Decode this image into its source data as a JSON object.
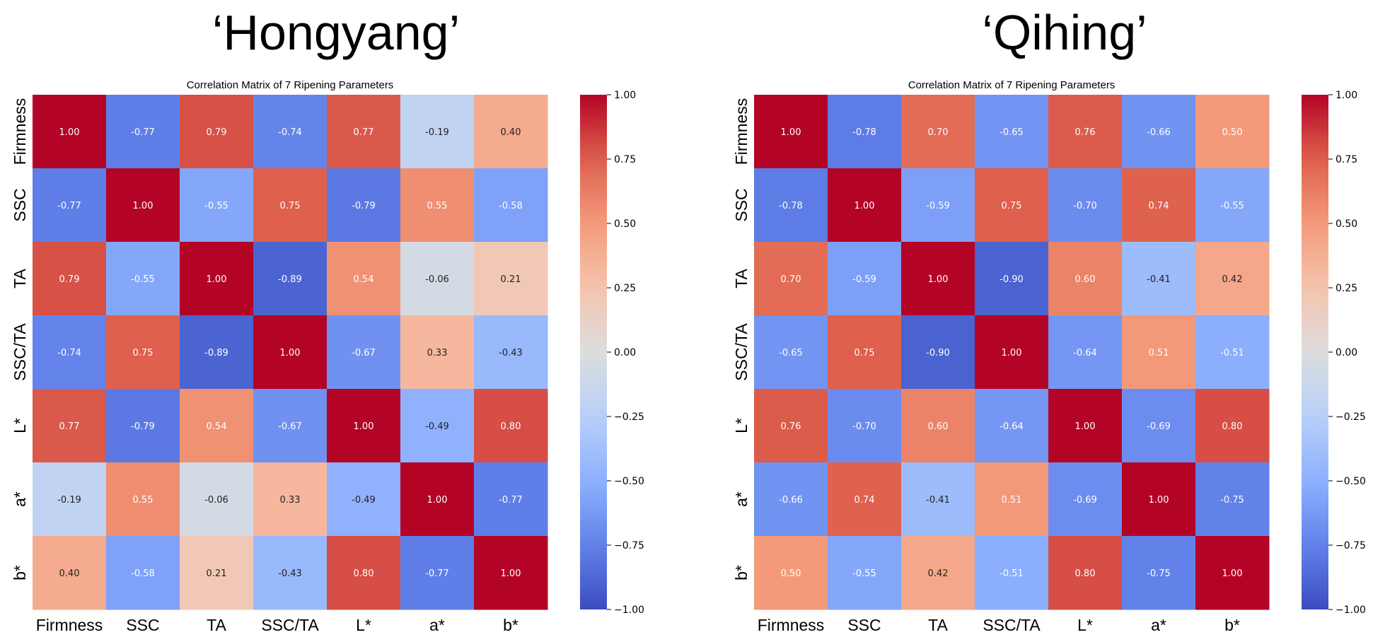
{
  "figure": {
    "panels": [
      {
        "title": "‘Hongyang’"
      },
      {
        "title": "‘Qihing’"
      }
    ]
  },
  "chart_data": [
    {
      "type": "heatmap",
      "title": "Correlation Matrix of 7 Ripening Parameters",
      "panel_label": "‘Hongyang’",
      "x_labels": [
        "Firmness",
        "SSC",
        "TA",
        "SSC/TA",
        "L*",
        "a*",
        "b*"
      ],
      "y_labels": [
        "Firmness",
        "SSC",
        "TA",
        "SSC/TA",
        "L*",
        "a*",
        "b*"
      ],
      "values": [
        [
          1.0,
          -0.77,
          0.79,
          -0.74,
          0.77,
          -0.19,
          0.4
        ],
        [
          -0.77,
          1.0,
          -0.55,
          0.75,
          -0.79,
          0.55,
          -0.58
        ],
        [
          0.79,
          -0.55,
          1.0,
          -0.89,
          0.54,
          -0.06,
          0.21
        ],
        [
          -0.74,
          0.75,
          -0.89,
          1.0,
          -0.67,
          0.33,
          -0.43
        ],
        [
          0.77,
          -0.79,
          0.54,
          -0.67,
          1.0,
          -0.49,
          0.8
        ],
        [
          -0.19,
          0.55,
          -0.06,
          0.33,
          -0.49,
          1.0,
          -0.77
        ],
        [
          0.4,
          -0.58,
          0.21,
          -0.43,
          0.8,
          -0.77,
          1.0
        ]
      ],
      "colormap": "coolwarm",
      "vmin": -1.0,
      "vmax": 1.0,
      "colorbar_ticks": [
        "1.00",
        "0.75",
        "0.50",
        "0.25",
        "0.00",
        "−0.25",
        "−0.50",
        "−0.75",
        "−1.00"
      ]
    },
    {
      "type": "heatmap",
      "title": "Correlation Matrix of 7 Ripening Parameters",
      "panel_label": "‘Qihing’",
      "x_labels": [
        "Firmness",
        "SSC",
        "TA",
        "SSC/TA",
        "L*",
        "a*",
        "b*"
      ],
      "y_labels": [
        "Firmness",
        "SSC",
        "TA",
        "SSC/TA",
        "L*",
        "a*",
        "b*"
      ],
      "values": [
        [
          1.0,
          -0.78,
          0.7,
          -0.65,
          0.76,
          -0.66,
          0.5
        ],
        [
          -0.78,
          1.0,
          -0.59,
          0.75,
          -0.7,
          0.74,
          -0.55
        ],
        [
          0.7,
          -0.59,
          1.0,
          -0.9,
          0.6,
          -0.41,
          0.42
        ],
        [
          -0.65,
          0.75,
          -0.9,
          1.0,
          -0.64,
          0.51,
          -0.51
        ],
        [
          0.76,
          -0.7,
          0.6,
          -0.64,
          1.0,
          -0.69,
          0.8
        ],
        [
          -0.66,
          0.74,
          -0.41,
          0.51,
          -0.69,
          1.0,
          -0.75
        ],
        [
          0.5,
          -0.55,
          0.42,
          -0.51,
          0.8,
          -0.75,
          1.0
        ]
      ],
      "colormap": "coolwarm",
      "vmin": -1.0,
      "vmax": 1.0,
      "colorbar_ticks": [
        "1.00",
        "0.75",
        "0.50",
        "0.25",
        "0.00",
        "−0.25",
        "−0.50",
        "−0.75",
        "−1.00"
      ]
    }
  ]
}
